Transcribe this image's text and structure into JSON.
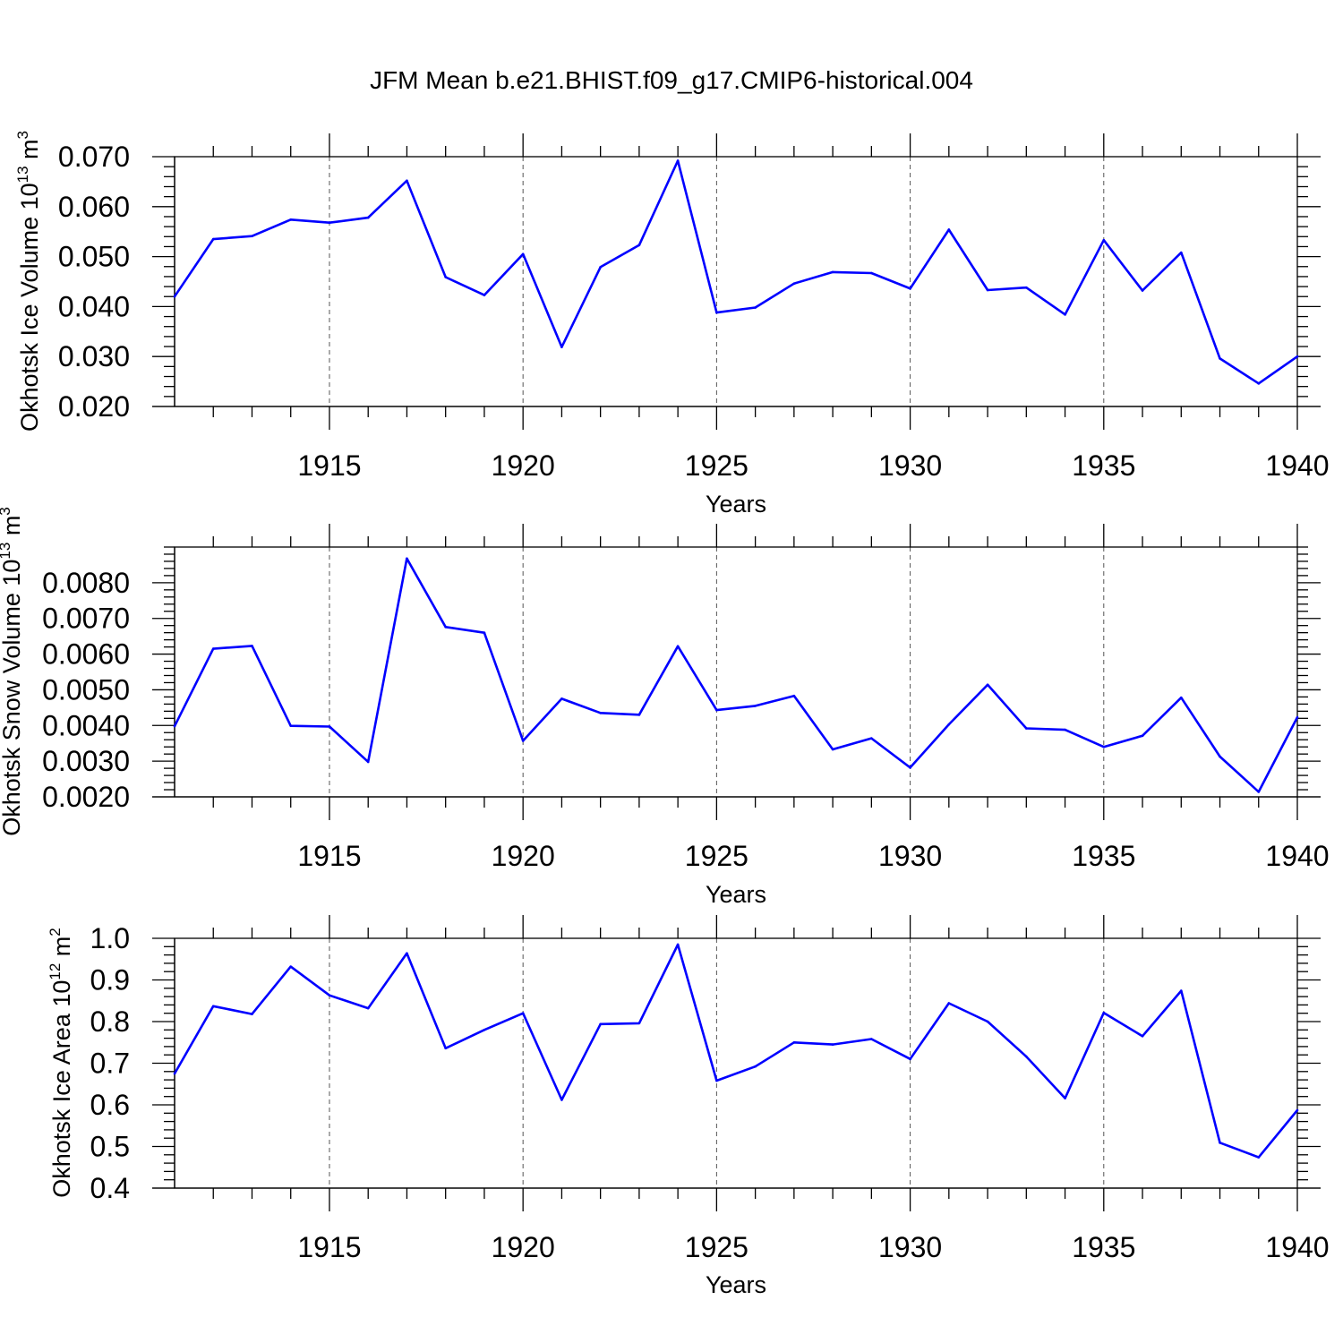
{
  "title": "JFM Mean b.e21.BHIST.f09_g17.CMIP6-historical.004",
  "colors": {
    "line": "#0000ff",
    "axis": "#000000",
    "grid": "#555555"
  },
  "chart_data": [
    {
      "type": "line",
      "ylabel_main": "Okhotsk Ice Volume 10",
      "ylabel_exp": "13",
      "ylabel_unit": " m",
      "ylabel_unit_exp": "3",
      "xlabel": "Years",
      "xlim": [
        1911,
        1940
      ],
      "ylim": [
        0.02,
        0.07
      ],
      "x_ticks": [
        1915,
        1920,
        1925,
        1930,
        1935,
        1940
      ],
      "x_tick_labels": [
        "1915",
        "1920",
        "1925",
        "1930",
        "1935",
        "1940"
      ],
      "y_ticks": [
        0.02,
        0.03,
        0.04,
        0.05,
        0.06,
        0.07
      ],
      "y_tick_labels": [
        "0.020",
        "0.030",
        "0.040",
        "0.050",
        "0.060",
        "0.070"
      ],
      "y_minor_step": 0.002,
      "grid_x": true,
      "x": [
        1911,
        1912,
        1913,
        1914,
        1915,
        1916,
        1917,
        1918,
        1919,
        1920,
        1921,
        1922,
        1923,
        1924,
        1925,
        1926,
        1927,
        1928,
        1929,
        1930,
        1931,
        1932,
        1933,
        1934,
        1935,
        1936,
        1937,
        1938,
        1939,
        1940
      ],
      "values": [
        0.042,
        0.0535,
        0.0541,
        0.0574,
        0.0568,
        0.0578,
        0.0652,
        0.0459,
        0.0423,
        0.0505,
        0.0319,
        0.0479,
        0.0523,
        0.0692,
        0.0388,
        0.0398,
        0.0446,
        0.0469,
        0.0467,
        0.0436,
        0.0554,
        0.0433,
        0.0438,
        0.0384,
        0.0533,
        0.0432,
        0.0508,
        0.0296,
        0.0246,
        0.03
      ]
    },
    {
      "type": "line",
      "ylabel_main": "Okhotsk Snow Volume 10",
      "ylabel_exp": "13",
      "ylabel_unit": " m",
      "ylabel_unit_exp": "3",
      "xlabel": "Years",
      "xlim": [
        1911,
        1940
      ],
      "ylim": [
        0.002,
        0.009
      ],
      "x_ticks": [
        1915,
        1920,
        1925,
        1930,
        1935,
        1940
      ],
      "x_tick_labels": [
        "1915",
        "1920",
        "1925",
        "1930",
        "1935",
        "1940"
      ],
      "y_ticks": [
        0.002,
        0.003,
        0.004,
        0.005,
        0.006,
        0.007,
        0.008
      ],
      "y_tick_labels": [
        "0.0020",
        "0.0030",
        "0.0040",
        "0.0050",
        "0.0060",
        "0.0070",
        "0.0080"
      ],
      "y_minor_step": 0.0002,
      "grid_x": true,
      "x": [
        1911,
        1912,
        1913,
        1914,
        1915,
        1916,
        1917,
        1918,
        1919,
        1920,
        1921,
        1922,
        1923,
        1924,
        1925,
        1926,
        1927,
        1928,
        1929,
        1930,
        1931,
        1932,
        1933,
        1934,
        1935,
        1936,
        1937,
        1938,
        1939,
        1940
      ],
      "values": [
        0.00398,
        0.00615,
        0.00623,
        0.00399,
        0.00397,
        0.00298,
        0.00868,
        0.00676,
        0.0066,
        0.00357,
        0.00475,
        0.00435,
        0.0043,
        0.00622,
        0.00443,
        0.00455,
        0.00483,
        0.00333,
        0.00364,
        0.00282,
        0.00403,
        0.00514,
        0.00392,
        0.00388,
        0.0034,
        0.00371,
        0.00478,
        0.00313,
        0.00214,
        0.00423
      ]
    },
    {
      "type": "line",
      "ylabel_main": "Okhotsk Ice Area 10",
      "ylabel_exp": "12",
      "ylabel_unit": " m",
      "ylabel_unit_exp": "2",
      "xlabel": "Years",
      "xlim": [
        1911,
        1940
      ],
      "ylim": [
        0.4,
        1.0
      ],
      "x_ticks": [
        1915,
        1920,
        1925,
        1930,
        1935,
        1940
      ],
      "x_tick_labels": [
        "1915",
        "1920",
        "1925",
        "1930",
        "1935",
        "1940"
      ],
      "y_ticks": [
        0.4,
        0.5,
        0.6,
        0.7,
        0.8,
        0.9,
        1.0
      ],
      "y_tick_labels": [
        "0.4",
        "0.5",
        "0.6",
        "0.7",
        "0.8",
        "0.9",
        "1.0"
      ],
      "y_minor_step": 0.02,
      "grid_x": true,
      "x": [
        1911,
        1912,
        1913,
        1914,
        1915,
        1916,
        1917,
        1918,
        1919,
        1920,
        1921,
        1922,
        1923,
        1924,
        1925,
        1926,
        1927,
        1928,
        1929,
        1930,
        1931,
        1932,
        1933,
        1934,
        1935,
        1936,
        1937,
        1938,
        1939,
        1940
      ],
      "values": [
        0.675,
        0.837,
        0.818,
        0.932,
        0.863,
        0.832,
        0.964,
        0.736,
        0.78,
        0.82,
        0.612,
        0.794,
        0.796,
        0.985,
        0.658,
        0.692,
        0.75,
        0.745,
        0.758,
        0.71,
        0.844,
        0.8,
        0.716,
        0.616,
        0.821,
        0.765,
        0.874,
        0.509,
        0.474,
        0.587
      ]
    }
  ]
}
